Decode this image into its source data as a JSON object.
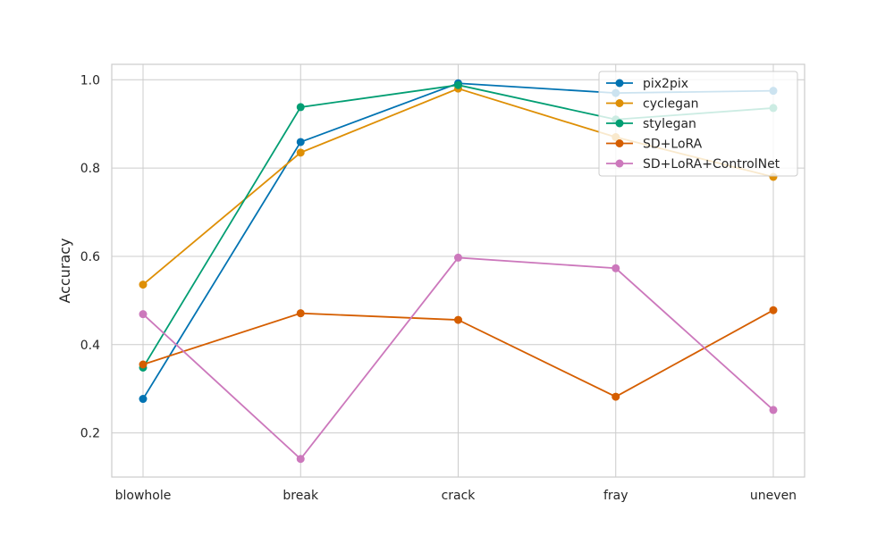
{
  "chart_data": {
    "type": "line",
    "categories": [
      "blowhole",
      "break",
      "crack",
      "fray",
      "uneven"
    ],
    "ylabel": "Accuracy",
    "xlabel": "",
    "ylim": [
      0.1,
      1.035
    ],
    "yticks": [
      0.2,
      0.4,
      0.6,
      0.8,
      1.0
    ],
    "grid": true,
    "legend_position": "top-right",
    "series": [
      {
        "name": "pix2pix",
        "color": "#0173b2",
        "values": [
          0.277,
          0.859,
          0.992,
          0.97,
          0.975
        ]
      },
      {
        "name": "cyclegan",
        "color": "#de8f05",
        "values": [
          0.536,
          0.835,
          0.98,
          0.87,
          0.78
        ]
      },
      {
        "name": "stylegan",
        "color": "#029e73",
        "values": [
          0.348,
          0.938,
          0.988,
          0.91,
          0.936
        ]
      },
      {
        "name": "SD+LoRA",
        "color": "#d55e00",
        "values": [
          0.355,
          0.471,
          0.456,
          0.282,
          0.478
        ]
      },
      {
        "name": "SD+LoRA+ControlNet",
        "color": "#cc78bc",
        "values": [
          0.469,
          0.141,
          0.597,
          0.573,
          0.252
        ]
      }
    ]
  }
}
